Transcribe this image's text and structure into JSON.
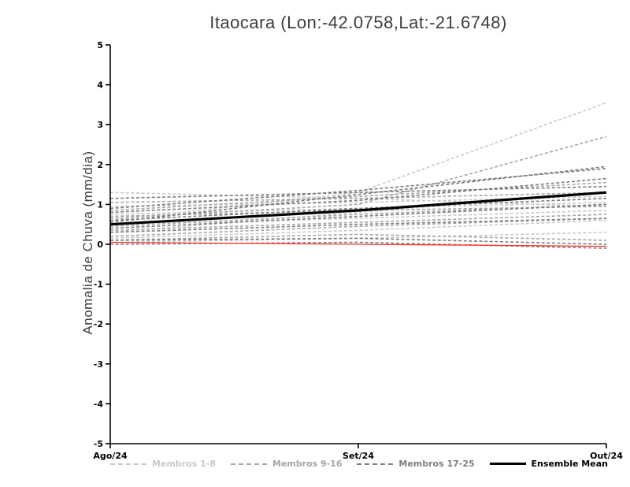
{
  "chart_data": {
    "type": "line",
    "title": "Itaocara (Lon:-42.0758,Lat:-21.6748)",
    "xlabel": "",
    "ylabel": "Anomalia de Chuva (mm/dia)",
    "x_ticklabels": [
      "Ago/24",
      "Set/24",
      "Out/24"
    ],
    "y_ticks": [
      5,
      4,
      3,
      2,
      1,
      0,
      -1,
      -2,
      -3,
      -4,
      -5
    ],
    "ylim": [
      -5,
      5
    ],
    "grid": false,
    "legend_position": "bottom",
    "colors": {
      "members_1_8": "#c9c9c9",
      "members_9_16": "#a6a6a6",
      "members_17_25": "#7d7d7d",
      "ensemble_mean": "#000000",
      "reference": "#ff3b2d",
      "axis": "#000000"
    },
    "groups": [
      {
        "name": "Membros 1-8",
        "color": "#c9c9c9"
      },
      {
        "name": "Membros 9-16",
        "color": "#a6a6a6"
      },
      {
        "name": "Membros 17-25",
        "color": "#7d7d7d"
      }
    ],
    "series": [
      {
        "name": "m01",
        "group": 0,
        "values": [
          0.15,
          0.35,
          0.6
        ]
      },
      {
        "name": "m02",
        "group": 0,
        "values": [
          0.6,
          1.3,
          3.55
        ]
      },
      {
        "name": "m03",
        "group": 0,
        "values": [
          0.75,
          0.9,
          1.05
        ]
      },
      {
        "name": "m04",
        "group": 0,
        "values": [
          1.3,
          1.15,
          0.95
        ]
      },
      {
        "name": "m05",
        "group": 0,
        "values": [
          0.3,
          0.8,
          1.3
        ]
      },
      {
        "name": "m06",
        "group": 0,
        "values": [
          0.05,
          0.15,
          0.3
        ]
      },
      {
        "name": "m07",
        "group": 0,
        "values": [
          0.5,
          0.65,
          0.85
        ]
      },
      {
        "name": "m08",
        "group": 0,
        "values": [
          0.95,
          1.05,
          1.2
        ]
      },
      {
        "name": "m09",
        "group": 1,
        "values": [
          0.45,
          0.75,
          1.0
        ]
      },
      {
        "name": "m10",
        "group": 1,
        "values": [
          0.85,
          1.2,
          1.55
        ]
      },
      {
        "name": "m11",
        "group": 1,
        "values": [
          0.2,
          0.45,
          0.65
        ]
      },
      {
        "name": "m12",
        "group": 1,
        "values": [
          1.05,
          1.15,
          1.3
        ]
      },
      {
        "name": "m13",
        "group": 1,
        "values": [
          0.1,
          0.25,
          0.1
        ]
      },
      {
        "name": "m14",
        "group": 1,
        "values": [
          0.65,
          1.0,
          2.7
        ]
      },
      {
        "name": "m15",
        "group": 1,
        "values": [
          0.35,
          0.55,
          0.75
        ]
      },
      {
        "name": "m16",
        "group": 1,
        "values": [
          0.7,
          0.85,
          0.95
        ]
      },
      {
        "name": "m17",
        "group": 2,
        "values": [
          0.55,
          1.25,
          1.95
        ]
      },
      {
        "name": "m18",
        "group": 2,
        "values": [
          0.9,
          1.35,
          1.9
        ]
      },
      {
        "name": "m19",
        "group": 2,
        "values": [
          0.3,
          0.5,
          0.65
        ]
      },
      {
        "name": "m20",
        "group": 2,
        "values": [
          0.1,
          0.15,
          0.0
        ]
      },
      {
        "name": "m21",
        "group": 2,
        "values": [
          0.6,
          0.9,
          1.15
        ]
      },
      {
        "name": "m22",
        "group": 2,
        "values": [
          1.15,
          1.3,
          1.45
        ]
      },
      {
        "name": "m23",
        "group": 2,
        "values": [
          0.4,
          0.7,
          1.0
        ]
      },
      {
        "name": "m24",
        "group": 2,
        "values": [
          0.0,
          0.05,
          -0.1
        ]
      },
      {
        "name": "m25",
        "group": 2,
        "values": [
          0.8,
          1.1,
          1.65
        ]
      }
    ],
    "reference_line": {
      "color": "#ff3b2d",
      "values": [
        0.05,
        0.0,
        -0.05
      ]
    },
    "ensemble_mean": {
      "name": "Ensemble Mean",
      "color": "#000000",
      "values": [
        0.5,
        0.85,
        1.3
      ]
    }
  }
}
